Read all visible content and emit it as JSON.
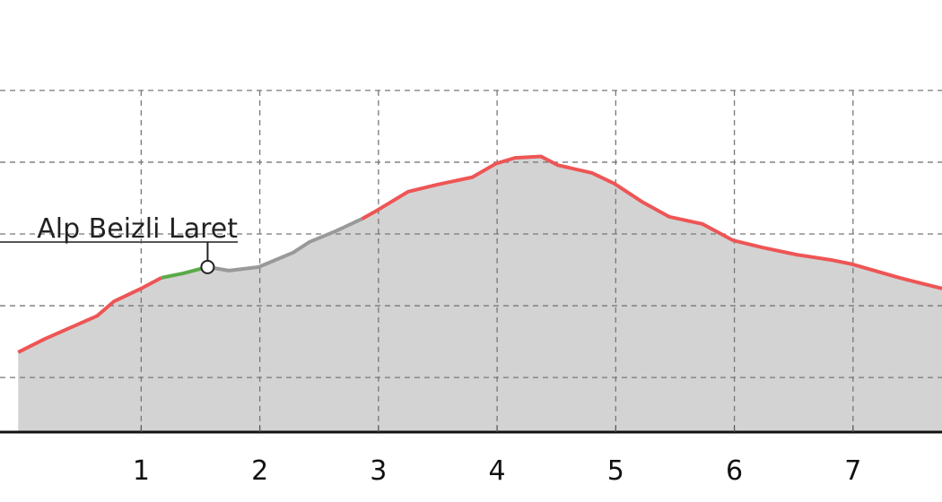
{
  "chart_data": {
    "type": "area",
    "title": "",
    "xlabel": "",
    "ylabel": "",
    "x_ticks": [
      1,
      2,
      3,
      4,
      5,
      6,
      7
    ],
    "x_tick_labels": [
      "1",
      "2",
      "3",
      "4",
      "5",
      "6",
      "7"
    ],
    "xlim": [
      -0.19,
      7.75
    ],
    "y_gridlines": [
      1,
      2,
      3,
      4,
      5
    ],
    "y_tick_labels_shown": false,
    "ylim": [
      0.24,
      6.26
    ],
    "grid": true,
    "fill_color": "#d3d3d3",
    "profile": {
      "x": [
        0.19,
        0.63,
        0.77,
        1.0,
        1.17,
        1.35,
        1.56,
        1.74,
        1.99,
        2.28,
        2.42,
        2.64,
        2.86,
        2.99,
        3.25,
        3.5,
        3.79,
        3.99,
        4.15,
        4.37,
        4.51,
        4.8,
        4.99,
        5.23,
        5.45,
        5.73,
        5.99,
        6.24,
        6.53,
        6.81,
        6.99,
        7.39,
        7.75
      ],
      "y": [
        1.54,
        1.86,
        2.06,
        2.24,
        2.39,
        2.45,
        2.54,
        2.49,
        2.54,
        2.74,
        2.89,
        3.04,
        3.21,
        3.33,
        3.59,
        3.69,
        3.79,
        3.98,
        4.06,
        4.08,
        3.96,
        3.85,
        3.7,
        3.44,
        3.24,
        3.14,
        2.91,
        2.81,
        2.71,
        2.64,
        2.58,
        2.39,
        2.24
      ]
    },
    "segments": [
      {
        "from": 0.19,
        "to": 1.17,
        "color": "#ee5555"
      },
      {
        "from": 1.17,
        "to": 1.56,
        "color": "#5aaa4a"
      },
      {
        "from": 1.56,
        "to": 2.86,
        "color": "#999999"
      },
      {
        "from": 2.86,
        "to": 7.75,
        "color": "#ee5555"
      }
    ],
    "waypoints": [
      {
        "x": 1.56,
        "label": "Alp Beizli Laret"
      }
    ]
  }
}
